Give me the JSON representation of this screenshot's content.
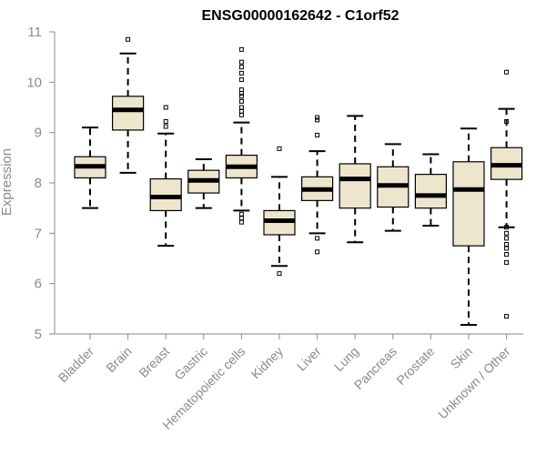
{
  "chart_data": {
    "type": "boxplot",
    "title": "ENSG00000162642 - C1orf52",
    "xlabel": "",
    "ylabel": "Expression",
    "ylim": [
      5,
      11
    ],
    "yticks": [
      5,
      6,
      7,
      8,
      9,
      10,
      11
    ],
    "grid": false,
    "legend": "none",
    "colors": {
      "box_fill": "#ede6cd",
      "box_stroke": "#000000",
      "median": "#000000",
      "axis": "#8a8a8a"
    },
    "categories": [
      "Bladder",
      "Brain",
      "Breast",
      "Gastric",
      "Hematopoietic cells",
      "Kidney",
      "Liver",
      "Lung",
      "Pancreas",
      "Prostate",
      "Skin",
      "Unknown / Other"
    ],
    "boxes": [
      {
        "category": "Bladder",
        "whisker_low": 7.5,
        "q1": 8.1,
        "median": 8.33,
        "q3": 8.52,
        "whisker_high": 9.1,
        "outliers": []
      },
      {
        "category": "Brain",
        "whisker_low": 8.2,
        "q1": 9.05,
        "median": 9.45,
        "q3": 9.72,
        "whisker_high": 10.57,
        "outliers": [
          10.85
        ]
      },
      {
        "category": "Breast",
        "whisker_low": 6.75,
        "q1": 7.45,
        "median": 7.72,
        "q3": 8.08,
        "whisker_high": 8.98,
        "outliers": [
          9.12,
          9.22,
          9.5
        ]
      },
      {
        "category": "Gastric",
        "whisker_low": 7.5,
        "q1": 7.8,
        "median": 8.05,
        "q3": 8.25,
        "whisker_high": 8.47,
        "outliers": []
      },
      {
        "category": "Hematopoietic cells",
        "whisker_low": 7.45,
        "q1": 8.1,
        "median": 8.32,
        "q3": 8.55,
        "whisker_high": 9.2,
        "outliers": [
          7.22,
          7.3,
          7.38,
          9.35,
          9.42,
          9.5,
          9.62,
          9.72,
          9.78,
          9.85,
          10.05,
          10.18,
          10.3,
          10.4,
          10.65
        ]
      },
      {
        "category": "Kidney",
        "whisker_low": 6.35,
        "q1": 6.97,
        "median": 7.25,
        "q3": 7.45,
        "whisker_high": 8.12,
        "outliers": [
          6.2,
          8.68
        ]
      },
      {
        "category": "Liver",
        "whisker_low": 7.0,
        "q1": 7.65,
        "median": 7.87,
        "q3": 8.12,
        "whisker_high": 8.63,
        "outliers": [
          6.63,
          6.9,
          8.95,
          9.25,
          9.3
        ]
      },
      {
        "category": "Lung",
        "whisker_low": 6.82,
        "q1": 7.5,
        "median": 8.08,
        "q3": 8.38,
        "whisker_high": 9.33,
        "outliers": []
      },
      {
        "category": "Pancreas",
        "whisker_low": 7.05,
        "q1": 7.52,
        "median": 7.95,
        "q3": 8.32,
        "whisker_high": 8.77,
        "outliers": []
      },
      {
        "category": "Prostate",
        "whisker_low": 7.15,
        "q1": 7.5,
        "median": 7.75,
        "q3": 8.17,
        "whisker_high": 8.57,
        "outliers": []
      },
      {
        "category": "Skin",
        "whisker_low": 5.18,
        "q1": 6.75,
        "median": 7.87,
        "q3": 8.42,
        "whisker_high": 9.08,
        "outliers": []
      },
      {
        "category": "Unknown / Other",
        "whisker_low": 7.12,
        "q1": 8.07,
        "median": 8.35,
        "q3": 8.7,
        "whisker_high": 9.47,
        "outliers": [
          5.35,
          6.42,
          6.58,
          6.7,
          6.78,
          6.9,
          7.0,
          7.12,
          9.22,
          10.2
        ]
      }
    ]
  }
}
